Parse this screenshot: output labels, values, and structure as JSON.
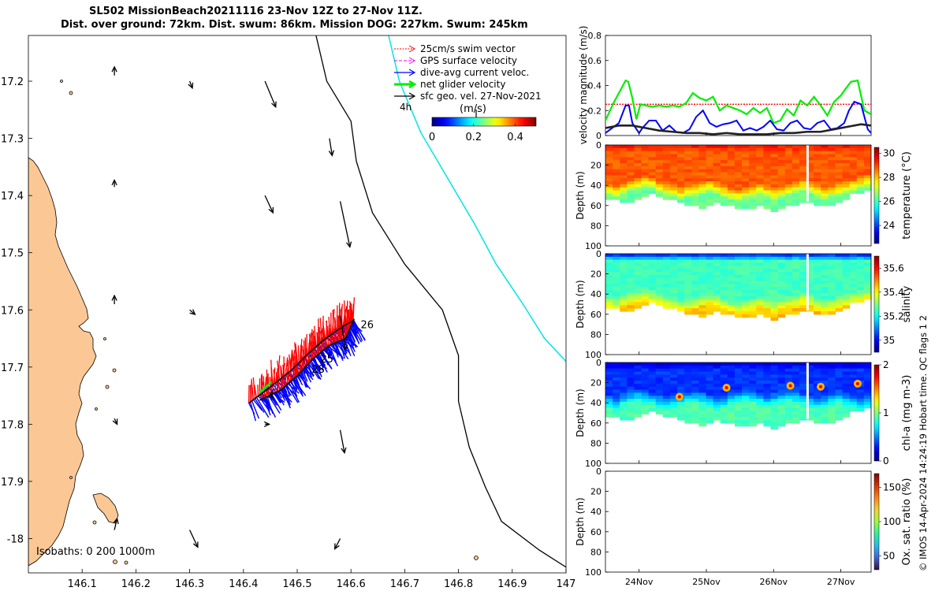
{
  "title": {
    "line1": "SL502 MissionBeach20211116 23-Nov 12Z to 27-Nov 11Z.",
    "line2": "Dist. over ground: 72km. Dist. swum: 86km. Mission DOG: 227km. Swum: 245km"
  },
  "copyright": "© IMOS 14-Apr-2024 14:24:19 Hobart time. QC flags 1  2",
  "colors": {
    "land": "#fbc895",
    "swim": "#ff0000",
    "gps": "#ff00ff",
    "dive_avg": "#0000ff",
    "net": "#00ee00",
    "sfc_geo": "#000000",
    "isobath_1000": "#00e5e5"
  },
  "chart_data": [
    {
      "type": "map",
      "name": "glider-track-map",
      "xlim": [
        146.0,
        147.0
      ],
      "ylim": [
        -18.06,
        -17.12
      ],
      "x_ticks": [
        146.1,
        146.2,
        146.3,
        146.4,
        146.5,
        146.6,
        146.7,
        146.8,
        146.9,
        147
      ],
      "x_tick_labels": [
        "146.1",
        "146.2",
        "146.3",
        "146.4",
        "146.5",
        "146.6",
        "146.7",
        "146.8",
        "146.9",
        "147"
      ],
      "y_ticks": [
        -17.2,
        -17.3,
        -17.4,
        -17.5,
        -17.6,
        -17.7,
        -17.8,
        -17.9,
        -18.0
      ],
      "y_tick_labels": [
        "17.2",
        "17.3",
        "17.4",
        "17.5",
        "17.6",
        "17.7",
        "17.8",
        "17.9",
        "-18"
      ],
      "legend": [
        {
          "label": "25cm/s swim vector",
          "color": "#ff0000",
          "style": "dotted"
        },
        {
          "label": "GPS surface velocity",
          "color": "#ff00ff",
          "style": "dashed"
        },
        {
          "label": "dive-avg current veloc.",
          "color": "#0000ff",
          "style": "solid"
        },
        {
          "label": "net glider velocity",
          "color": "#00ee00",
          "style": "thick"
        },
        {
          "label": "sfc geo. vel. 27-Nov-2021",
          "color": "#000000",
          "style": "solid"
        }
      ],
      "scale_label": "4h",
      "colorbar": {
        "label": "(m/s)",
        "ticks": [
          0,
          0.2,
          0.4
        ],
        "tick_labels": [
          "0",
          "0.2",
          "0.4"
        ],
        "range": [
          0,
          0.5
        ]
      },
      "isobaths_label": "Isobaths: 0   200   1000m",
      "isobath_200": [
        [
          146.535,
          -17.12
        ],
        [
          146.555,
          -17.2
        ],
        [
          146.6,
          -17.27
        ],
        [
          146.61,
          -17.34
        ],
        [
          146.64,
          -17.43
        ],
        [
          146.7,
          -17.52
        ],
        [
          146.77,
          -17.6
        ],
        [
          146.8,
          -17.68
        ],
        [
          146.8,
          -17.76
        ],
        [
          146.82,
          -17.84
        ],
        [
          146.85,
          -17.91
        ],
        [
          146.88,
          -17.97
        ],
        [
          146.95,
          -18.02
        ],
        [
          147.0,
          -18.05
        ]
      ],
      "isobath_1000": [
        [
          146.67,
          -17.12
        ],
        [
          146.69,
          -17.2
        ],
        [
          146.73,
          -17.29
        ],
        [
          146.78,
          -17.37
        ],
        [
          146.83,
          -17.45
        ],
        [
          146.87,
          -17.52
        ],
        [
          146.92,
          -17.59
        ],
        [
          146.96,
          -17.65
        ],
        [
          147.0,
          -17.69
        ]
      ],
      "track_points": [
        [
          146.41,
          -17.763
        ],
        [
          146.45,
          -17.735
        ],
        [
          146.49,
          -17.705
        ],
        [
          146.52,
          -17.677
        ],
        [
          146.55,
          -17.652
        ],
        [
          146.58,
          -17.632
        ],
        [
          146.605,
          -17.618
        ],
        [
          146.59,
          -17.65
        ],
        [
          146.56,
          -17.662
        ],
        [
          146.53,
          -17.685
        ],
        [
          146.5,
          -17.715
        ],
        [
          146.47,
          -17.74
        ],
        [
          146.43,
          -17.758
        ]
      ],
      "track_labels": [
        {
          "text": "26",
          "x": 146.618,
          "y": -17.632
        },
        {
          "text": "25",
          "x": 146.543,
          "y": -17.692
        },
        {
          "text": "28",
          "x": 146.527,
          "y": -17.71
        },
        {
          "text": "4",
          "x": 146.445,
          "y": -17.757
        }
      ],
      "sfc_geo_vectors": [
        {
          "x": 146.16,
          "y": -17.19,
          "u": 0.0,
          "v": 0.015
        },
        {
          "x": 146.3,
          "y": -17.2,
          "u": 0.005,
          "v": -0.012
        },
        {
          "x": 146.44,
          "y": -17.2,
          "u": 0.02,
          "v": -0.045
        },
        {
          "x": 146.56,
          "y": -17.3,
          "u": 0.005,
          "v": -0.03
        },
        {
          "x": 146.16,
          "y": -17.385,
          "u": 0.0,
          "v": 0.012
        },
        {
          "x": 146.44,
          "y": -17.4,
          "u": 0.015,
          "v": -0.03
        },
        {
          "x": 146.58,
          "y": -17.41,
          "u": 0.018,
          "v": -0.08
        },
        {
          "x": 146.16,
          "y": -17.59,
          "u": 0.0,
          "v": 0.015
        },
        {
          "x": 146.3,
          "y": -17.6,
          "u": 0.01,
          "v": -0.008
        },
        {
          "x": 146.58,
          "y": -17.61,
          "u": 0.01,
          "v": -0.06
        },
        {
          "x": 146.16,
          "y": -17.79,
          "u": 0.005,
          "v": -0.01
        },
        {
          "x": 146.44,
          "y": -17.8,
          "u": 0.008,
          "v": 0.0
        },
        {
          "x": 146.58,
          "y": -17.81,
          "u": 0.008,
          "v": -0.04
        },
        {
          "x": 146.16,
          "y": -17.985,
          "u": 0.005,
          "v": 0.02
        },
        {
          "x": 146.3,
          "y": -17.985,
          "u": 0.015,
          "v": -0.03
        },
        {
          "x": 146.58,
          "y": -18.0,
          "u": -0.01,
          "v": -0.018
        }
      ]
    },
    {
      "type": "line",
      "name": "velocity-magnitude",
      "ylabel": "velocity magnitude (m/s)",
      "ylim": [
        0,
        0.8
      ],
      "y_ticks": [
        0,
        0.2,
        0.4,
        0.6,
        0.8
      ],
      "y_tick_labels": [
        "0",
        "0.2",
        "0.4",
        "0.6",
        "0.8"
      ],
      "x_range_days": [
        23.5,
        27.45
      ],
      "x_ticks": [
        24,
        25,
        26,
        27
      ],
      "x_tick_labels": [
        "24Nov",
        "25Nov",
        "26Nov",
        "27Nov"
      ],
      "series": [
        {
          "name": "25cm/s swim vector",
          "color": "#ff0000",
          "x": [
            23.5,
            27.45
          ],
          "values": [
            0.25,
            0.25
          ]
        },
        {
          "name": "net glider velocity",
          "color": "#00ee00",
          "x": [
            23.5,
            23.62,
            23.72,
            23.8,
            23.84,
            23.9,
            23.96,
            24.02,
            24.1,
            24.2,
            24.3,
            24.4,
            24.5,
            24.6,
            24.7,
            24.8,
            24.9,
            25.0,
            25.1,
            25.2,
            25.3,
            25.4,
            25.5,
            25.6,
            25.7,
            25.8,
            25.9,
            26.0,
            26.1,
            26.2,
            26.3,
            26.4,
            26.5,
            26.6,
            26.7,
            26.8,
            26.9,
            27.0,
            27.08,
            27.15,
            27.25,
            27.35,
            27.45
          ],
          "values": [
            0.12,
            0.26,
            0.36,
            0.44,
            0.43,
            0.3,
            0.13,
            0.25,
            0.24,
            0.23,
            0.24,
            0.23,
            0.24,
            0.23,
            0.26,
            0.34,
            0.3,
            0.28,
            0.31,
            0.2,
            0.24,
            0.22,
            0.2,
            0.17,
            0.22,
            0.18,
            0.22,
            0.1,
            0.12,
            0.21,
            0.16,
            0.28,
            0.24,
            0.31,
            0.24,
            0.16,
            0.27,
            0.32,
            0.38,
            0.43,
            0.44,
            0.2,
            0.17
          ]
        },
        {
          "name": "dive-avg current veloc.",
          "color": "#0000ff",
          "x": [
            23.5,
            23.6,
            23.7,
            23.8,
            23.85,
            23.9,
            24.0,
            24.05,
            24.15,
            24.25,
            24.35,
            24.45,
            24.55,
            24.65,
            24.75,
            24.85,
            24.95,
            25.05,
            25.15,
            25.25,
            25.35,
            25.45,
            25.55,
            25.65,
            25.75,
            25.85,
            25.95,
            26.05,
            26.15,
            26.25,
            26.35,
            26.45,
            26.55,
            26.65,
            26.75,
            26.85,
            26.95,
            27.05,
            27.12,
            27.2,
            27.3,
            27.4,
            27.45
          ],
          "values": [
            0.02,
            0.06,
            0.1,
            0.24,
            0.24,
            0.1,
            0.02,
            0.06,
            0.12,
            0.12,
            0.04,
            0.08,
            0.03,
            0.02,
            0.05,
            0.15,
            0.2,
            0.1,
            0.07,
            0.09,
            0.1,
            0.12,
            0.04,
            0.06,
            0.04,
            0.07,
            0.12,
            0.05,
            0.04,
            0.1,
            0.12,
            0.06,
            0.05,
            0.1,
            0.12,
            0.05,
            0.06,
            0.1,
            0.2,
            0.27,
            0.25,
            0.05,
            0.02
          ]
        },
        {
          "name": "sfc geo. vel.",
          "color": "#222222",
          "x": [
            23.5,
            23.7,
            23.9,
            24.1,
            24.3,
            24.5,
            24.7,
            24.9,
            25.1,
            25.3,
            25.5,
            25.7,
            25.9,
            26.1,
            26.3,
            26.5,
            26.7,
            26.9,
            27.1,
            27.3,
            27.45
          ],
          "values": [
            0.06,
            0.08,
            0.08,
            0.06,
            0.04,
            0.03,
            0.02,
            0.02,
            0.01,
            0.02,
            0.01,
            0.01,
            0.01,
            0.02,
            0.02,
            0.03,
            0.03,
            0.05,
            0.07,
            0.09,
            0.08
          ]
        }
      ]
    },
    {
      "type": "heatmap",
      "name": "temperature-section",
      "ylabel": "Depth (m)",
      "clabel": "temperature (°C)",
      "ylim": [
        100,
        0
      ],
      "y_ticks": [
        0,
        20,
        40,
        60,
        80,
        100
      ],
      "y_tick_labels": [
        "0",
        "20",
        "40",
        "60",
        "80",
        "100"
      ],
      "clim": [
        22.5,
        30.5
      ],
      "c_ticks": [
        24,
        26,
        28,
        30
      ],
      "c_tick_labels": [
        "24",
        "26",
        "28",
        "30"
      ],
      "upper_value": 28.8,
      "lower_value": 26.3,
      "surface_value": 29.3,
      "thermocline_depths": [
        36,
        38,
        35,
        32,
        30,
        28,
        30,
        34,
        36,
        38,
        40,
        38,
        36,
        34,
        33,
        35,
        38,
        40,
        42,
        40,
        38,
        36,
        38,
        40,
        38,
        36,
        34,
        32,
        34,
        37,
        40,
        38,
        36,
        34,
        32,
        30,
        28
      ],
      "bottom_depths": [
        52,
        54,
        56,
        55,
        52,
        50,
        48,
        50,
        52,
        54,
        56,
        58,
        60,
        62,
        58,
        56,
        58,
        60,
        62,
        63,
        62,
        60,
        62,
        64,
        63,
        60,
        58,
        56,
        57,
        58,
        60,
        58,
        56,
        52,
        48,
        46,
        44
      ],
      "gap_day": 26.5
    },
    {
      "type": "heatmap",
      "name": "salinity-section",
      "ylabel": "Depth (m)",
      "clabel": "salinity",
      "ylim": [
        100,
        0
      ],
      "y_ticks": [
        0,
        20,
        40,
        60,
        80,
        100
      ],
      "y_tick_labels": [
        "0",
        "20",
        "40",
        "60",
        "80",
        "100"
      ],
      "clim": [
        34.9,
        35.7
      ],
      "c_ticks": [
        35,
        35.2,
        35.4,
        35.6
      ],
      "c_tick_labels": [
        "35",
        "35.2",
        "35.4",
        "35.6"
      ],
      "upper_value": 35.25,
      "lower_value": 35.45,
      "surface_value": 35.05,
      "thermocline_depths": [
        40,
        42,
        38,
        36,
        34,
        33,
        35,
        38,
        40,
        42,
        44,
        42,
        40,
        38,
        37,
        39,
        42,
        44,
        46,
        44,
        42,
        40,
        42,
        44,
        42,
        40,
        38,
        36,
        38,
        41,
        44,
        42,
        40,
        38,
        36,
        34,
        32
      ],
      "bottom_depths": [
        52,
        54,
        56,
        55,
        52,
        50,
        48,
        50,
        52,
        54,
        56,
        58,
        60,
        62,
        58,
        56,
        58,
        60,
        62,
        63,
        62,
        60,
        62,
        64,
        63,
        60,
        58,
        56,
        57,
        58,
        60,
        58,
        56,
        52,
        48,
        46,
        44
      ],
      "gap_day": 26.5
    },
    {
      "type": "heatmap",
      "name": "chlorophyll-section",
      "ylabel": "Depth (m)",
      "clabel": "chl-a (mg m-3)",
      "ylim": [
        100,
        0
      ],
      "y_ticks": [
        0,
        20,
        40,
        60,
        80,
        100
      ],
      "y_tick_labels": [
        "0",
        "20",
        "40",
        "60",
        "80",
        "100"
      ],
      "clim": [
        0,
        2
      ],
      "c_ticks": [
        0,
        1,
        2
      ],
      "c_tick_labels": [
        "0",
        "1",
        "2"
      ],
      "upper_value": 0.35,
      "lower_value": 0.9,
      "surface_value": 0.2,
      "thermocline_depths": [
        30,
        32,
        28,
        26,
        24,
        26,
        28,
        30,
        32,
        30,
        28,
        26,
        25,
        27,
        30,
        32,
        30,
        28,
        26,
        24,
        25,
        27,
        30,
        28,
        26,
        24,
        26,
        28,
        30,
        32,
        30,
        28,
        26,
        28,
        30,
        32,
        30
      ],
      "bottom_depths": [
        52,
        54,
        56,
        55,
        52,
        50,
        48,
        50,
        52,
        54,
        56,
        58,
        60,
        62,
        58,
        56,
        58,
        60,
        62,
        63,
        62,
        60,
        62,
        64,
        63,
        60,
        58,
        56,
        57,
        58,
        60,
        58,
        56,
        52,
        48,
        46,
        44
      ],
      "gap_day": 26.5
    },
    {
      "type": "heatmap",
      "name": "oxygen-section",
      "ylabel": "Depth (m)",
      "clabel": "Ox. sat. ratio (%)",
      "ylim": [
        100,
        0
      ],
      "y_ticks": [
        0,
        20,
        40,
        60,
        80,
        100
      ],
      "y_tick_labels": [
        "0",
        "20",
        "40",
        "60",
        "80",
        "100"
      ],
      "clim": [
        30,
        170
      ],
      "c_ticks": [
        50,
        100,
        150
      ],
      "c_tick_labels": [
        "50",
        "100",
        "150"
      ],
      "empty": true
    }
  ]
}
